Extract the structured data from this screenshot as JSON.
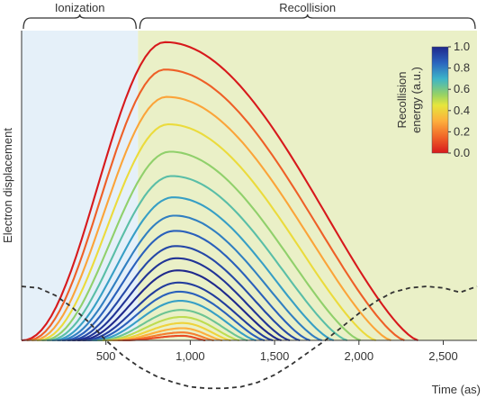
{
  "chart_data": {
    "type": "line",
    "title": "",
    "xlabel": "Time (as)",
    "ylabel": "Electron displacement",
    "xlim": [
      0,
      2700
    ],
    "ylim": [
      -0.18,
      1.0
    ],
    "x_ticks": [
      500,
      1000,
      1500,
      2000,
      2500
    ],
    "x_tick_labels": [
      "500",
      "1,000",
      "1,500",
      "2,000",
      "2,500"
    ],
    "grid": false,
    "regions": [
      {
        "label": "Ionization",
        "x_range": [
          0,
          690
        ],
        "color": "#e5f0f9"
      },
      {
        "label": "Recollision",
        "x_range": [
          690,
          2700
        ],
        "color": "#eaf0c7"
      }
    ],
    "colorbar": {
      "title": "Recollision energy (a.u.)",
      "ticks": [
        0.0,
        0.2,
        0.4,
        0.6,
        0.8,
        1.0
      ],
      "tick_labels": [
        "0.0",
        "0.2",
        "0.4",
        "0.6",
        "0.8",
        "1.0"
      ],
      "colors": [
        "#d7191c",
        "#fdae61",
        "#ffff99",
        "#abdda4",
        "#2b83ba",
        "#1a237e"
      ]
    },
    "laser_field": {
      "name": "",
      "style": "dashed",
      "color": "#333333",
      "x": [
        0,
        100,
        200,
        300,
        400,
        500,
        600,
        700,
        800,
        900,
        1000,
        1100,
        1200,
        1300,
        1400,
        1500,
        1600,
        1700,
        1800,
        1900,
        2000,
        2100,
        2200,
        2300,
        2400,
        2500,
        2600,
        2700
      ],
      "y": [
        0.18,
        0.175,
        0.15,
        0.11,
        0.06,
        0.0,
        -0.05,
        -0.09,
        -0.12,
        -0.14,
        -0.155,
        -0.16,
        -0.16,
        -0.155,
        -0.14,
        -0.115,
        -0.08,
        -0.04,
        0.0,
        0.045,
        0.09,
        0.13,
        0.16,
        0.175,
        0.18,
        0.175,
        0.16,
        0.18
      ]
    },
    "trajectories": [
      {
        "start": 0,
        "end": 2350,
        "peak_x": 850,
        "peak": 0.98,
        "energy": 0.0
      },
      {
        "start": 30,
        "end": 2270,
        "peak_x": 850,
        "peak": 0.89,
        "energy": 0.14
      },
      {
        "start": 60,
        "end": 2190,
        "peak_x": 860,
        "peak": 0.8,
        "energy": 0.28
      },
      {
        "start": 90,
        "end": 2100,
        "peak_x": 870,
        "peak": 0.71,
        "energy": 0.42
      },
      {
        "start": 120,
        "end": 2010,
        "peak_x": 880,
        "peak": 0.62,
        "energy": 0.56
      },
      {
        "start": 150,
        "end": 1930,
        "peak_x": 890,
        "peak": 0.54,
        "energy": 0.65
      },
      {
        "start": 180,
        "end": 1850,
        "peak_x": 900,
        "peak": 0.47,
        "energy": 0.74
      },
      {
        "start": 210,
        "end": 1780,
        "peak_x": 905,
        "peak": 0.41,
        "energy": 0.8
      },
      {
        "start": 240,
        "end": 1710,
        "peak_x": 910,
        "peak": 0.36,
        "energy": 0.86
      },
      {
        "start": 270,
        "end": 1650,
        "peak_x": 915,
        "peak": 0.31,
        "energy": 0.92
      },
      {
        "start": 300,
        "end": 1590,
        "peak_x": 920,
        "peak": 0.27,
        "energy": 0.97
      },
      {
        "start": 330,
        "end": 1540,
        "peak_x": 925,
        "peak": 0.23,
        "energy": 1.0
      },
      {
        "start": 360,
        "end": 1490,
        "peak_x": 930,
        "peak": 0.19,
        "energy": 0.95
      },
      {
        "start": 390,
        "end": 1440,
        "peak_x": 935,
        "peak": 0.16,
        "energy": 0.86
      },
      {
        "start": 420,
        "end": 1390,
        "peak_x": 940,
        "peak": 0.13,
        "energy": 0.74
      },
      {
        "start": 450,
        "end": 1340,
        "peak_x": 945,
        "peak": 0.1,
        "energy": 0.62
      },
      {
        "start": 480,
        "end": 1290,
        "peak_x": 950,
        "peak": 0.077,
        "energy": 0.5
      },
      {
        "start": 510,
        "end": 1240,
        "peak_x": 955,
        "peak": 0.057,
        "energy": 0.4
      },
      {
        "start": 540,
        "end": 1190,
        "peak_x": 955,
        "peak": 0.04,
        "energy": 0.3
      },
      {
        "start": 570,
        "end": 1140,
        "peak_x": 955,
        "peak": 0.026,
        "energy": 0.2
      },
      {
        "start": 600,
        "end": 1090,
        "peak_x": 955,
        "peak": 0.015,
        "energy": 0.1
      }
    ]
  }
}
